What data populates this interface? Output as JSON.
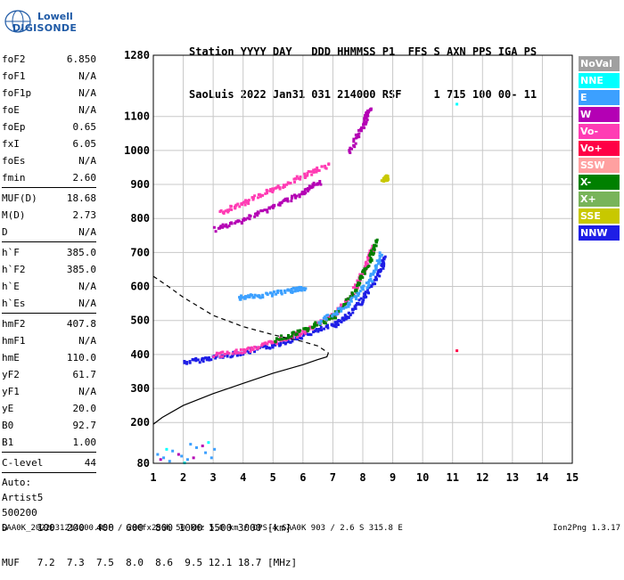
{
  "logo": {
    "line1": "Lowell",
    "line2": "DIGISONDE"
  },
  "header": {
    "labels": "Station YYYY DAY   DDD HHMMSS P1  FFS S AXN PPS IGA PS",
    "values": "SaoLuis 2022 Jan31 031 214000 RSF     1 715 100 00- 11"
  },
  "params": [
    {
      "label": "foF2",
      "value": "6.850"
    },
    {
      "label": "foF1",
      "value": "N/A"
    },
    {
      "label": "foF1p",
      "value": "N/A"
    },
    {
      "label": "foE",
      "value": "N/A"
    },
    {
      "label": "foEp",
      "value": "0.65"
    },
    {
      "label": "fxI",
      "value": "6.05"
    },
    {
      "label": "foEs",
      "value": "N/A"
    },
    {
      "label": "fmin",
      "value": "2.60"
    },
    {
      "sep": true
    },
    {
      "label": "MUF(D)",
      "value": "18.68"
    },
    {
      "label": "M(D)",
      "value": "2.73"
    },
    {
      "label": "D",
      "value": "N/A"
    },
    {
      "sep": true
    },
    {
      "label": "h`F",
      "value": "385.0"
    },
    {
      "label": "h`F2",
      "value": "385.0"
    },
    {
      "label": "h`E",
      "value": "N/A"
    },
    {
      "label": "h`Es",
      "value": "N/A"
    },
    {
      "sep": true
    },
    {
      "label": "hmF2",
      "value": "407.8"
    },
    {
      "label": "hmF1",
      "value": "N/A"
    },
    {
      "label": "hmE",
      "value": "110.0"
    },
    {
      "label": "yF2",
      "value": "61.7"
    },
    {
      "label": "yF1",
      "value": "N/A"
    },
    {
      "label": "yE",
      "value": "20.0"
    },
    {
      "label": "B0",
      "value": "92.7"
    },
    {
      "label": "B1",
      "value": "1.00"
    },
    {
      "sep": true
    },
    {
      "label": "C-level",
      "value": "44"
    },
    {
      "sep": true
    },
    {
      "line": "Auto:"
    },
    {
      "line": "Artist5"
    },
    {
      "line": "500200"
    }
  ],
  "legend": [
    {
      "label": "NoVal",
      "color": "#a0a0a0"
    },
    {
      "label": "NNE",
      "color": "#00ffff"
    },
    {
      "label": "E",
      "color": "#3ca0ff"
    },
    {
      "label": "W",
      "color": "#b400b4"
    },
    {
      "label": "Vo-",
      "color": "#ff3cb4"
    },
    {
      "label": "Vo+",
      "color": "#ff0046"
    },
    {
      "label": "SSW",
      "color": "#ffa0a0"
    },
    {
      "label": "X-",
      "color": "#008000"
    },
    {
      "label": "X+",
      "color": "#78b45a"
    },
    {
      "label": "SSE",
      "color": "#c8c800"
    },
    {
      "label": "NNW",
      "color": "#1e1ee6"
    }
  ],
  "muf_table": {
    "row1": "D     100  200  400  600  800 1000 1500 3000 [km]",
    "row2": "MUF   7.2  7.3  7.5  8.0  8.6  9.5 12.1 18.7 [MHz]"
  },
  "footer": "SAA0K_2022031214000.RSF / 280fx256h 50 kHz 5.0 km / DPS-4 SAA0K 903 / 2.6 S 315.8 E",
  "version": "Ion2Png 1.3.17",
  "chart_data": {
    "type": "scatter",
    "title": "",
    "xlabel": "",
    "ylabel": "",
    "xlim": [
      1,
      15
    ],
    "ylim": [
      80,
      1280
    ],
    "x_ticks": [
      1,
      2,
      3,
      4,
      5,
      6,
      7,
      8,
      9,
      10,
      11,
      12,
      13,
      14,
      15
    ],
    "y_ticks": [
      80,
      200,
      300,
      400,
      500,
      600,
      700,
      800,
      900,
      1000,
      1100,
      1280
    ],
    "grid": true,
    "profile_solid": [
      [
        1.0,
        195
      ],
      [
        1.3,
        215
      ],
      [
        2.0,
        250
      ],
      [
        3.0,
        285
      ],
      [
        4.0,
        315
      ],
      [
        5.0,
        345
      ],
      [
        6.0,
        370
      ],
      [
        6.5,
        385
      ],
      [
        6.8,
        393
      ],
      [
        6.85,
        405
      ]
    ],
    "profile_dashed": [
      [
        1.0,
        630
      ],
      [
        1.5,
        600
      ],
      [
        2.0,
        568
      ],
      [
        3.0,
        515
      ],
      [
        4.0,
        482
      ],
      [
        5.0,
        458
      ],
      [
        6.0,
        438
      ],
      [
        6.5,
        425
      ],
      [
        6.85,
        405
      ]
    ],
    "trace_segments": [
      {
        "color": "#1e1ee6",
        "points": [
          [
            2.0,
            380
          ],
          [
            3.0,
            395
          ],
          [
            4.0,
            410
          ],
          [
            5.0,
            430
          ],
          [
            6.0,
            460
          ],
          [
            7.0,
            490
          ],
          [
            7.5,
            520
          ],
          [
            8.0,
            570
          ],
          [
            8.5,
            640
          ],
          [
            8.7,
            690
          ]
        ]
      },
      {
        "color": "#ff3cb4",
        "points": [
          [
            3.0,
            400
          ],
          [
            4.0,
            415
          ],
          [
            5.0,
            440
          ],
          [
            6.0,
            470
          ],
          [
            7.0,
            520
          ],
          [
            7.6,
            580
          ],
          [
            8.0,
            650
          ],
          [
            8.3,
            720
          ]
        ]
      },
      {
        "color": "#008000",
        "points": [
          [
            5.0,
            445
          ],
          [
            6.0,
            475
          ],
          [
            7.0,
            515
          ],
          [
            7.7,
            590
          ],
          [
            8.2,
            680
          ],
          [
            8.4,
            740
          ]
        ]
      },
      {
        "color": "#3ca0ff",
        "points": [
          [
            6.5,
            500
          ],
          [
            7.5,
            550
          ],
          [
            8.2,
            620
          ],
          [
            8.6,
            700
          ]
        ]
      },
      {
        "color": "#b400b4",
        "points": [
          [
            3.0,
            770
          ],
          [
            4.0,
            800
          ],
          [
            5.0,
            840
          ],
          [
            6.0,
            880
          ],
          [
            6.5,
            910
          ]
        ]
      },
      {
        "color": "#ff3cb4",
        "points": [
          [
            3.2,
            820
          ],
          [
            4.0,
            850
          ],
          [
            5.0,
            890
          ],
          [
            6.0,
            930
          ],
          [
            6.8,
            960
          ]
        ]
      },
      {
        "color": "#b400b4",
        "points": [
          [
            7.5,
            1000
          ],
          [
            8.0,
            1080
          ],
          [
            8.2,
            1130
          ]
        ]
      },
      {
        "color": "#3ca0ff",
        "points": [
          [
            3.8,
            570
          ],
          [
            4.5,
            575
          ],
          [
            5.5,
            590
          ],
          [
            6.0,
            600
          ]
        ]
      },
      {
        "color": "#c8c800",
        "points": [
          [
            8.6,
            915
          ],
          [
            8.8,
            925
          ]
        ]
      }
    ],
    "noise_points": [
      {
        "color": "#3ca0ff",
        "points": [
          [
            1.1,
            110
          ],
          [
            1.3,
            100
          ],
          [
            1.6,
            120
          ],
          [
            1.9,
            105
          ],
          [
            2.1,
            95
          ],
          [
            2.4,
            130
          ],
          [
            2.7,
            115
          ],
          [
            3.0,
            125
          ],
          [
            1.5,
            90
          ],
          [
            2.2,
            140
          ],
          [
            2.9,
            100
          ]
        ]
      },
      {
        "color": "#b400b4",
        "points": [
          [
            1.2,
            95
          ],
          [
            1.8,
            110
          ],
          [
            2.3,
            100
          ],
          [
            2.6,
            135
          ]
        ]
      },
      {
        "color": "#00ffff",
        "points": [
          [
            1.4,
            125
          ],
          [
            2.0,
            85
          ],
          [
            2.8,
            145
          ]
        ]
      },
      {
        "color": "#ff0046",
        "points": [
          [
            11.1,
            415
          ]
        ]
      },
      {
        "color": "#00ffff",
        "points": [
          [
            11.1,
            1140
          ]
        ]
      }
    ]
  }
}
